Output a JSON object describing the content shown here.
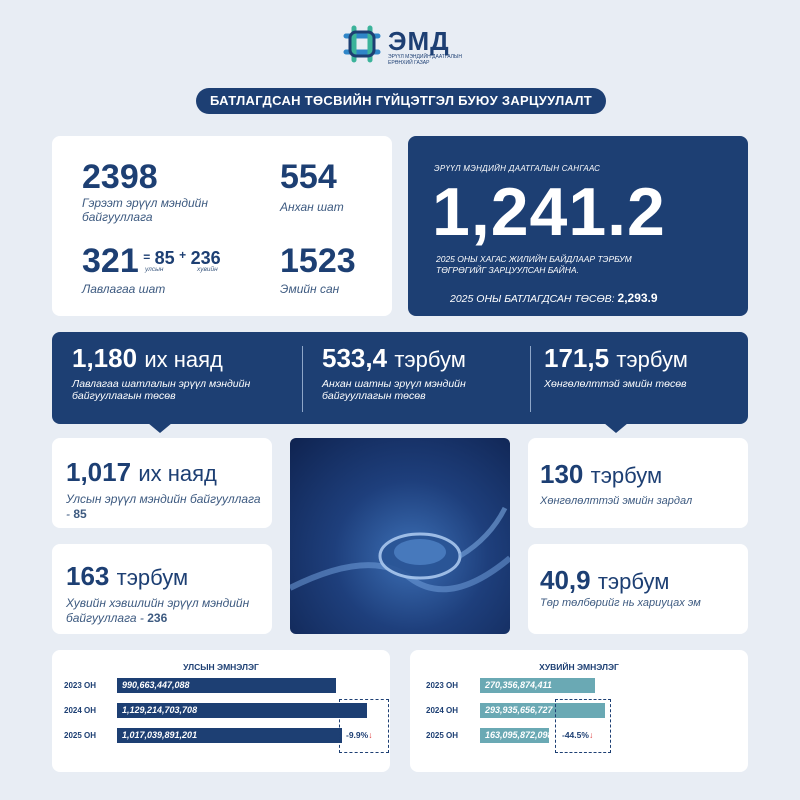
{
  "header": {
    "logo_text": "ЭМД",
    "logo_sub": "ЭРҮҮЛ МЭНДИЙН ДААТГАЛЫН ЕРӨНХИЙ ГАЗАР",
    "title": "БАТЛАГДСАН ТӨСВИЙН ГҮЙЦЭТГЭЛ БУЮУ ЗАРЦУУЛАЛТ"
  },
  "stats": {
    "contracted_num": "2398",
    "contracted_label": "Гэрээт эрүүл мэндийн байгууллага",
    "primary_num": "554",
    "primary_label": "Анхан шат",
    "reference_num": "321",
    "reference_eq": "=",
    "reference_public": "85",
    "reference_plus": "+",
    "reference_private": "236",
    "public_word": "улсын",
    "private_word": "хувийн",
    "reference_label": "Лавлагаа шат",
    "pharmacy_num": "1523",
    "pharmacy_label": "Эмийн сан"
  },
  "fund": {
    "kicker": "ЭРҮҮЛ МЭНДИЙН ДААТГАЛЫН САНГААС",
    "amount": "1,241.2",
    "desc": "2025 ОНЫ ХАГАС ЖИЛИЙН БАЙДЛААР ТЭРБУМ ТӨГРӨГИЙГ ЗАРЦУУЛСАН БАЙНА.",
    "approved_label": "2025 ОНЫ БАТЛАГДСАН ТӨСӨВ:",
    "approved_value": "2,293.9"
  },
  "banner": {
    "items": [
      {
        "num": "1,180",
        "unit": "их наяд",
        "label": "Лавлагаа шатлалын эрүүл мэндийн байгууллагын төсөв"
      },
      {
        "num": "533,4",
        "unit": "тэрбум",
        "label": "Анхан шатны эрүүл мэндийн байгууллагын төсөв"
      },
      {
        "num": "171,5",
        "unit": "тэрбум",
        "label": "Хөнгөлөлттэй эмийн төсөв"
      }
    ]
  },
  "cards": {
    "public_num": "1,017",
    "public_unit": "их наяд",
    "public_label": "Улсын эрүүл мэндийн байгууллага -",
    "public_count": "85",
    "private_num": "163",
    "private_unit": "тэрбум",
    "private_label": "Хувийн хэвшлийн эрүүл мэндийн байгууллага -",
    "private_count": "236",
    "drug_num": "130",
    "drug_unit": "тэрбум",
    "drug_label": "Хөнгөлөлттэй эмийн зардал",
    "state_num": "40,9",
    "state_unit": "тэрбум",
    "state_label": "Төр төлбөрийг нь хариуцах эм"
  },
  "chart_data": [
    {
      "type": "bar",
      "title": "УЛСЫН ЭМНЭЛЭГ",
      "categories": [
        "2023 ОН",
        "2024 ОН",
        "2025 ОН"
      ],
      "values": [
        990663447088,
        1129214703708,
        1017039891201
      ],
      "value_labels": [
        "990,663,447,088",
        "1,129,214,703,708",
        "1,017,039,891,201"
      ],
      "change": "-9.9%",
      "color": "#1d3f73"
    },
    {
      "type": "bar",
      "title": "ХУВИЙН ЭМНЭЛЭГ",
      "categories": [
        "2023 ОН",
        "2024 ОН",
        "2025 ОН"
      ],
      "values": [
        270356874411,
        293935656727,
        163095872098
      ],
      "value_labels": [
        "270,356,874,411",
        "293,935,656,727",
        "163,095,872,098"
      ],
      "change": "-44.5%",
      "color": "#6aa9b4"
    }
  ]
}
